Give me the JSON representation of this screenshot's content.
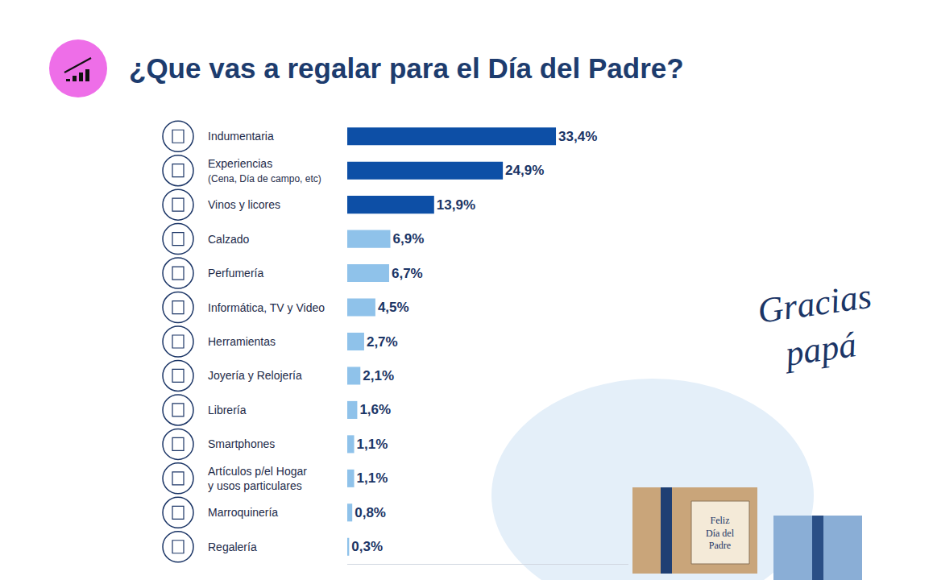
{
  "chart_data": {
    "type": "bar",
    "orientation": "horizontal",
    "title": "¿Que vas a regalar para el Día del Padre?",
    "categories": [
      "Indumentaria",
      "Experiencias (Cena, Día de campo, etc)",
      "Vinos y licores",
      "Calzado",
      "Perfumería",
      "Informática, TV y Video",
      "Herramientas",
      "Joyería y Relojería",
      "Librería",
      "Smartphones",
      "Artículos p/el Hogar y usos particulares",
      "Marroquinería",
      "Regalería"
    ],
    "values": [
      33.4,
      24.9,
      13.9,
      6.9,
      6.7,
      4.5,
      2.7,
      2.1,
      1.6,
      1.1,
      1.1,
      0.8,
      0.3
    ],
    "value_labels": [
      "33,4%",
      "24,9%",
      "13,9%",
      "6,9%",
      "6,7%",
      "4,5%",
      "2,7%",
      "2,1%",
      "1,6%",
      "1,1%",
      "1,1%",
      "0,8%",
      "0,3%"
    ],
    "colors": [
      "#0d4fa6",
      "#0d4fa6",
      "#0d4fa6",
      "#8fc2ea",
      "#8fc2ea",
      "#8fc2ea",
      "#8fc2ea",
      "#8fc2ea",
      "#8fc2ea",
      "#8fc2ea",
      "#8fc2ea",
      "#8fc2ea",
      "#8fc2ea"
    ],
    "data_labels": true,
    "tick_labels": false,
    "grid": false,
    "xlim": [
      0,
      45
    ],
    "xticks": [],
    "annotations": [
      "Gracias papá",
      "Feliz Día del Padre"
    ]
  }
}
